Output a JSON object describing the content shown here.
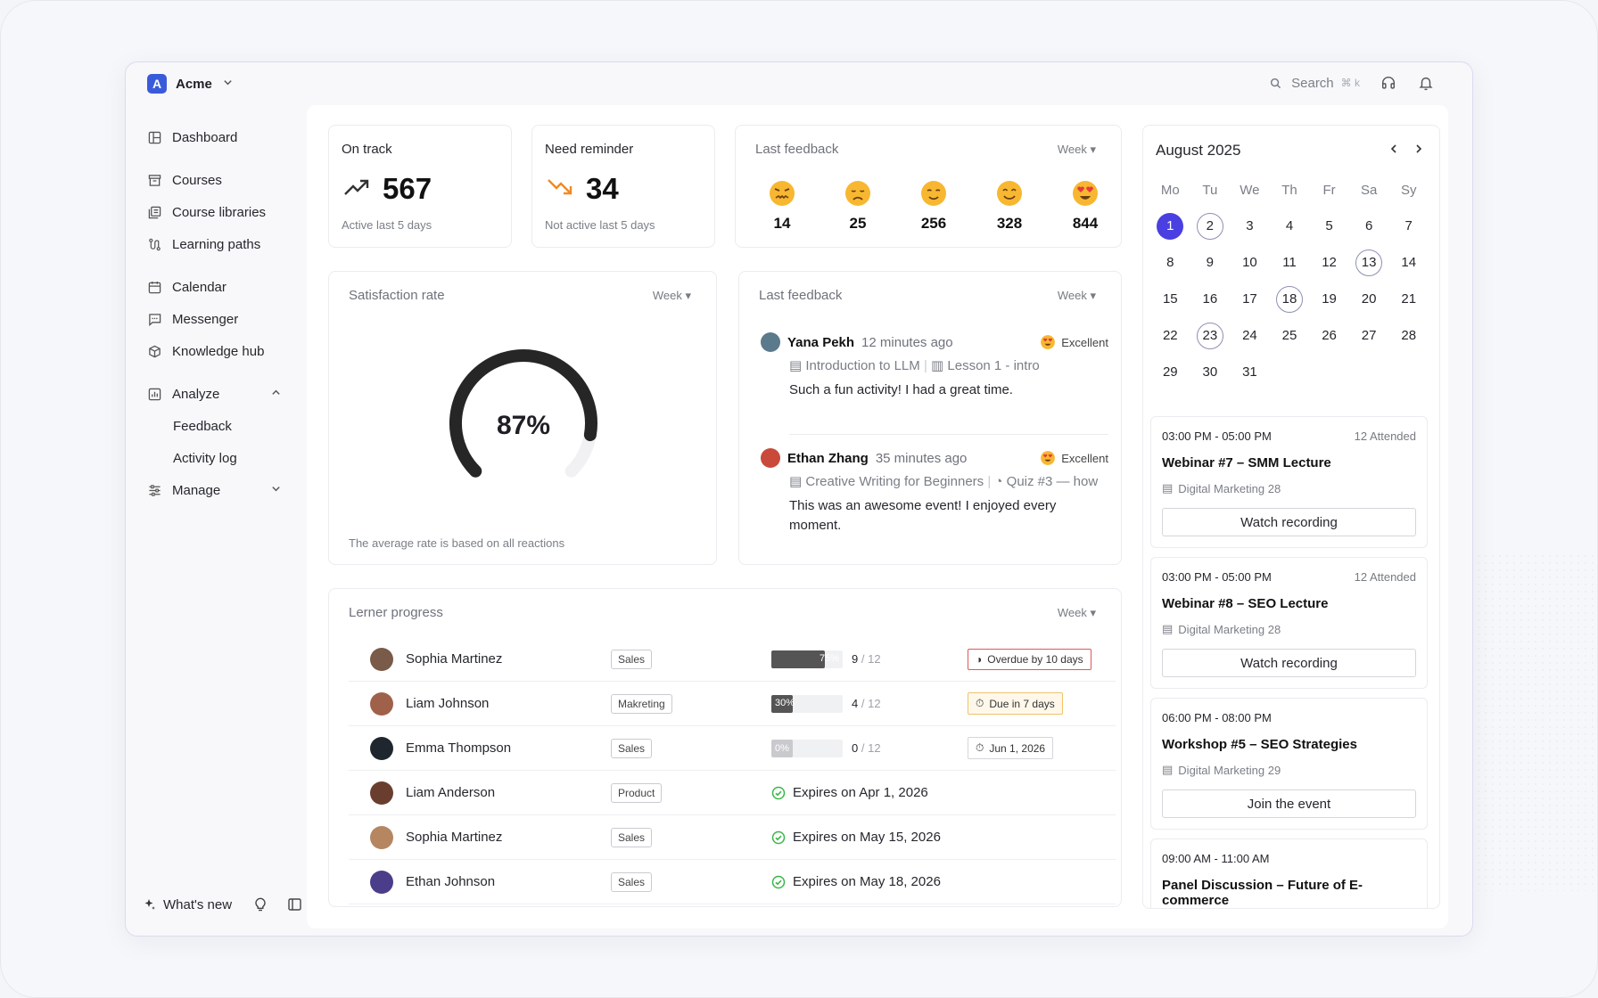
{
  "brand": {
    "name": "Acme",
    "logo_letter": "A"
  },
  "topbar": {
    "search_label": "Search",
    "search_shortcut": "⌘ k"
  },
  "sidebar": {
    "items": [
      {
        "label": "Dashboard",
        "icon": "dashboard-icon"
      },
      {
        "label": "Courses",
        "icon": "archive-icon"
      },
      {
        "label": "Course libraries",
        "icon": "library-icon"
      },
      {
        "label": "Learning paths",
        "icon": "path-icon"
      },
      {
        "label": "Calendar",
        "icon": "calendar-icon"
      },
      {
        "label": "Messenger",
        "icon": "message-icon"
      },
      {
        "label": "Knowledge hub",
        "icon": "hub-icon"
      },
      {
        "label": "Analyze",
        "icon": "chart-icon"
      },
      {
        "label": "Manage",
        "icon": "sliders-icon"
      }
    ],
    "analyze_sub": [
      "Feedback",
      "Activity log"
    ],
    "whats_new": "What's new"
  },
  "stats": {
    "on_track": {
      "title": "On track",
      "value": "567",
      "sub": "Active last 5 days"
    },
    "need_reminder": {
      "title": "Need reminder",
      "value": "34",
      "sub": "Not active last 5 days"
    }
  },
  "feedback_summary": {
    "title": "Last feedback",
    "period": "Week",
    "counts": [
      "14",
      "25",
      "256",
      "328",
      "844"
    ]
  },
  "satisfaction": {
    "title": "Satisfaction rate",
    "period": "Week",
    "value": "87%",
    "fraction": 0.87,
    "note": "The average rate is based on all reactions"
  },
  "feedback_list": {
    "title": "Last feedback",
    "period": "Week",
    "items": [
      {
        "name": "Yana Pekh",
        "time": "12 minutes ago",
        "rating": "Excellent",
        "course": "Introduction to LLM",
        "lesson": "Lesson 1 - intro",
        "text": "Such a fun activity! I had a great time.",
        "avatar_color": "#5b7a8c"
      },
      {
        "name": "Ethan Zhang",
        "time": "35 minutes ago",
        "rating": "Excellent",
        "course": "Creative Writing for Beginners",
        "lesson": "Quiz #3 — how",
        "text": "This was an awesome event! I enjoyed every moment.",
        "avatar_color": "#c94a3a"
      }
    ]
  },
  "progress": {
    "title": "Lerner progress",
    "period": "Week",
    "rows": [
      {
        "name": "Sophia Martinez",
        "tag": "Sales",
        "pct": 75,
        "pct_label": "75%",
        "done": "9",
        "total": "12",
        "status": "Overdue by 10 days",
        "status_kind": "red",
        "avatar_color": "#7a5a48"
      },
      {
        "name": "Liam Johnson",
        "tag": "Makreting",
        "pct": 30,
        "pct_label": "30%",
        "done": "4",
        "total": "12",
        "status": "Due in 7 days",
        "status_kind": "amber",
        "avatar_color": "#a0614a"
      },
      {
        "name": "Emma Thompson",
        "tag": "Sales",
        "pct": 0,
        "pct_label": "0%",
        "done": "0",
        "total": "12",
        "status": "Jun 1, 2026",
        "status_kind": "plain",
        "avatar_color": "#20262e"
      },
      {
        "name": "Liam Anderson",
        "tag": "Product",
        "expires": "Expires on Apr 1, 2026",
        "avatar_color": "#6a3e2e"
      },
      {
        "name": "Sophia Martinez",
        "tag": "Sales",
        "expires": "Expires on May 15, 2026",
        "avatar_color": "#b58660"
      },
      {
        "name": "Ethan Johnson",
        "tag": "Sales",
        "expires": "Expires on May 18, 2026",
        "avatar_color": "#4c3d8a"
      }
    ]
  },
  "calendar": {
    "title": "August 2025",
    "dow": [
      "Mo",
      "Tu",
      "We",
      "Th",
      "Fr",
      "Sa",
      "Sy"
    ],
    "days": [
      "1",
      "2",
      "3",
      "4",
      "5",
      "6",
      "7",
      "8",
      "9",
      "10",
      "11",
      "12",
      "13",
      "14",
      "15",
      "16",
      "17",
      "18",
      "19",
      "20",
      "21",
      "22",
      "23",
      "24",
      "25",
      "26",
      "27",
      "28",
      "29",
      "30",
      "31"
    ],
    "today": "1",
    "marked": [
      "2",
      "13",
      "18",
      "23"
    ]
  },
  "events": [
    {
      "time": "03:00 PM - 05:00 PM",
      "attended": "12 Attended",
      "title": "Webinar #7 – SMM Lecture",
      "course": "Digital Marketing 28",
      "button": "Watch recording"
    },
    {
      "time": "03:00 PM - 05:00 PM",
      "attended": "12 Attended",
      "title": "Webinar #8 – SEO Lecture",
      "course": "Digital Marketing 28",
      "button": "Watch recording"
    },
    {
      "time": "06:00 PM - 08:00 PM",
      "attended": "",
      "title": "Workshop #5 – SEO Strategies",
      "course": "Digital Marketing 29",
      "button": "Join the event"
    },
    {
      "time": "09:00 AM - 11:00 AM",
      "attended": "",
      "title": "Panel Discussion – Future of E-commerce",
      "course": "",
      "button": ""
    }
  ]
}
